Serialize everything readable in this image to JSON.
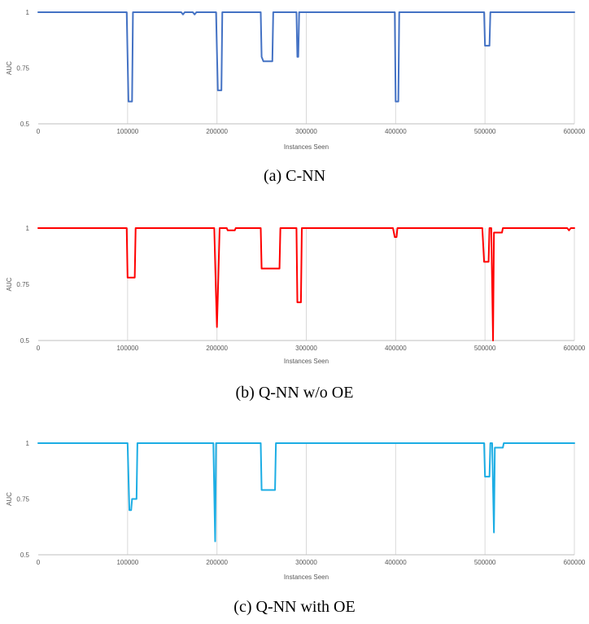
{
  "chart_data": [
    {
      "type": "line",
      "caption": "(a) C-NN",
      "xlabel": "Instances Seen",
      "ylabel": "AUC",
      "xlim": [
        0,
        600000
      ],
      "ylim": [
        0.5,
        1
      ],
      "xticks": [
        "0",
        "100000",
        "200000",
        "300000",
        "400000",
        "500000",
        "600000"
      ],
      "yticks": [
        "0.5",
        "0.75",
        "1"
      ],
      "grid": "vertical",
      "color": "#4472C4",
      "series": [
        {
          "x": [
            0,
            99000,
            101000,
            105000,
            106000,
            160000,
            162000,
            164000,
            173000,
            175000,
            177000,
            199000,
            201000,
            205000,
            206000,
            249000,
            250000,
            252000,
            262000,
            263000,
            289000,
            290000,
            291000,
            292000,
            399000,
            400000,
            403000,
            404000,
            499000,
            500000,
            505000,
            506000,
            600000
          ],
          "y": [
            1,
            1,
            0.6,
            0.6,
            1,
            1,
            0.99,
            1,
            1,
            0.99,
            1,
            1,
            0.65,
            0.65,
            1,
            1,
            0.8,
            0.78,
            0.78,
            1,
            1,
            0.8,
            0.8,
            1,
            1,
            0.6,
            0.6,
            1,
            1,
            0.85,
            0.85,
            1,
            1
          ]
        }
      ]
    },
    {
      "type": "line",
      "caption": "(b) Q-NN w/o OE",
      "xlabel": "Instances Seen",
      "ylabel": "AUC",
      "xlim": [
        0,
        600000
      ],
      "ylim": [
        0.5,
        1
      ],
      "xticks": [
        "0",
        "100000",
        "200000",
        "300000",
        "400000",
        "500000",
        "600000"
      ],
      "yticks": [
        "0.5",
        "0.75",
        "1"
      ],
      "grid": "vertical",
      "color": "#FF0000",
      "series": [
        {
          "x": [
            0,
            99000,
            100000,
            108000,
            109000,
            197000,
            199000,
            200000,
            201000,
            203000,
            211000,
            212000,
            220000,
            221000,
            249000,
            250000,
            270000,
            271000,
            289000,
            290000,
            294000,
            295000,
            397000,
            399000,
            401000,
            402000,
            497000,
            499000,
            504000,
            505000,
            507000,
            509000,
            510000,
            512000,
            513000,
            519000,
            520000,
            592000,
            594000,
            596000,
            600000
          ],
          "y": [
            1,
            1,
            0.78,
            0.78,
            1,
            1,
            0.7,
            0.56,
            0.7,
            1,
            1,
            0.99,
            0.99,
            1,
            1,
            0.82,
            0.82,
            1,
            1,
            0.67,
            0.67,
            1,
            1,
            0.96,
            0.96,
            1,
            1,
            0.85,
            0.85,
            1,
            1,
            0.5,
            0.98,
            0.98,
            0.98,
            0.98,
            1,
            1,
            0.99,
            1,
            1
          ]
        }
      ]
    },
    {
      "type": "line",
      "caption": "(c) Q-NN with OE",
      "xlabel": "Instances Seen",
      "ylabel": "AUC",
      "xlim": [
        0,
        600000
      ],
      "ylim": [
        0.5,
        1
      ],
      "xticks": [
        "0",
        "100000",
        "200000",
        "300000",
        "400000",
        "500000",
        "600000"
      ],
      "yticks": [
        "0.5",
        "0.75",
        "1"
      ],
      "grid": "vertical",
      "color": "#1CADE4",
      "series": [
        {
          "x": [
            0,
            100000,
            102000,
            104000,
            105000,
            110000,
            111000,
            196000,
            198000,
            199000,
            249000,
            250000,
            265000,
            266000,
            499000,
            500000,
            505000,
            506000,
            508000,
            510000,
            511000,
            512000,
            520000,
            521000,
            600000
          ],
          "y": [
            1,
            1,
            0.7,
            0.7,
            0.75,
            0.75,
            1,
            1,
            0.56,
            1,
            1,
            0.79,
            0.79,
            1,
            1,
            0.85,
            0.85,
            1,
            1,
            0.6,
            0.98,
            0.98,
            0.98,
            1,
            1
          ]
        }
      ]
    }
  ]
}
